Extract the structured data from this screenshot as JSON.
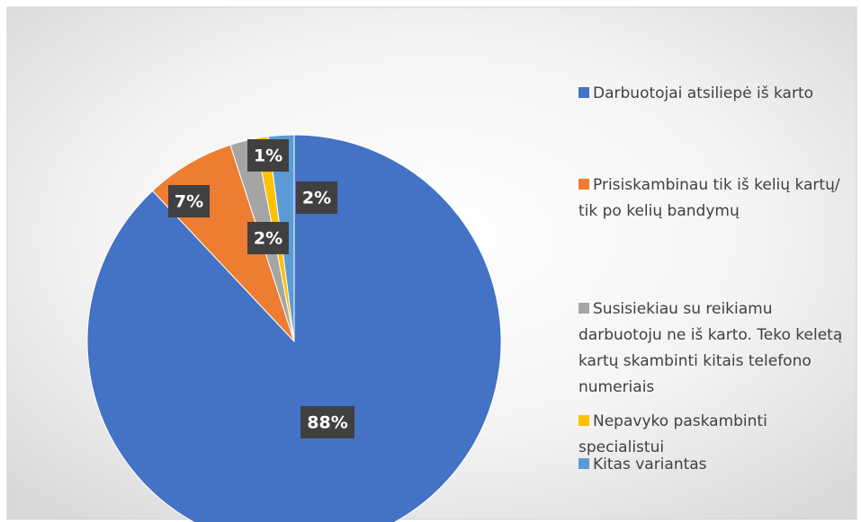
{
  "chart_data": {
    "type": "pie",
    "categories": [
      "Darbuotojai atsiliepė iš karto",
      "Prisiskambinau tik iš kelių kartų/ tik po kelių bandymų",
      "Susisiekiau su reikiamu darbuotoju ne iš karto. Teko keletą kartų skambinti kitais telefono numeriais",
      "Nepavyko paskambinti specialistui",
      "Kitas variantas"
    ],
    "values": [
      88,
      7,
      2,
      1,
      2
    ],
    "value_labels": [
      "88%",
      "7%",
      "2%",
      "1%",
      "2%"
    ],
    "colors": [
      "#4472c4",
      "#ed7d31",
      "#a5a5a5",
      "#ffc000",
      "#5b9bd5"
    ],
    "legend": "right"
  }
}
